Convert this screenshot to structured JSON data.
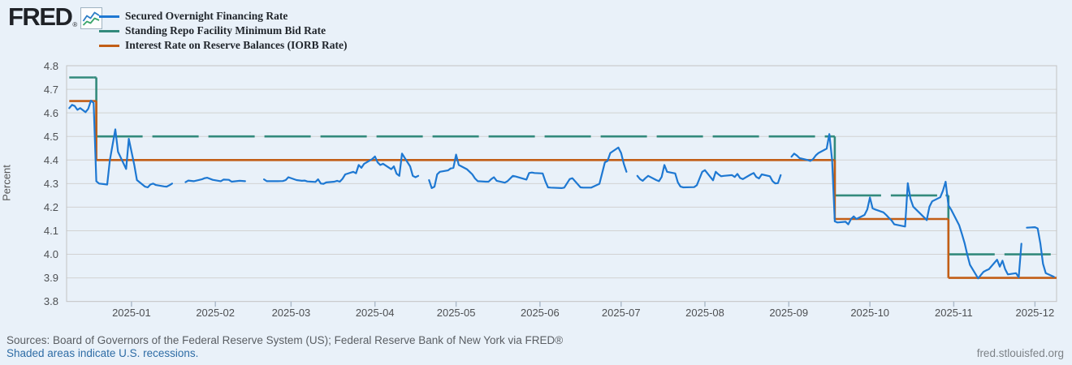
{
  "header": {
    "logo_text": "FRED",
    "logo_reg": "®",
    "legend": [
      {
        "label": "Secured Overnight Financing Rate",
        "color": "#1e78d2"
      },
      {
        "label": "Standing Repo Facility Minimum Bid Rate",
        "color": "#338a7c"
      },
      {
        "label": "Interest Rate on Reserve Balances (IORB Rate)",
        "color": "#c25e16"
      }
    ]
  },
  "footer": {
    "sources": "Sources: Board of Governors of the Federal Reserve System (US); Federal Reserve Bank of New York via FRED®",
    "recession_note": "Shaded areas indicate U.S. recessions.",
    "site_link": "fred.stlouisfed.org"
  },
  "chart_data": {
    "type": "line",
    "title": "",
    "xlabel": "",
    "ylabel": "Percent",
    "ylim": [
      3.8,
      4.8
    ],
    "yticks": [
      3.8,
      3.9,
      4.0,
      4.1,
      4.2,
      4.3,
      4.4,
      4.5,
      4.6,
      4.7,
      4.8
    ],
    "x_range": [
      "2024-12-08",
      "2025-12-09"
    ],
    "grid": "horizontal",
    "legend_position": "top-left",
    "xticks": [
      {
        "date": "2025-01-01",
        "label": "2025-01"
      },
      {
        "date": "2025-02-01",
        "label": "2025-02"
      },
      {
        "date": "2025-03-01",
        "label": "2025-03"
      },
      {
        "date": "2025-04-01",
        "label": "2025-04"
      },
      {
        "date": "2025-05-01",
        "label": "2025-05"
      },
      {
        "date": "2025-06-01",
        "label": "2025-06"
      },
      {
        "date": "2025-07-01",
        "label": "2025-07"
      },
      {
        "date": "2025-08-01",
        "label": "2025-08"
      },
      {
        "date": "2025-09-01",
        "label": "2025-09"
      },
      {
        "date": "2025-10-01",
        "label": "2025-10"
      },
      {
        "date": "2025-11-01",
        "label": "2025-11"
      },
      {
        "date": "2025-12-01",
        "label": "2025-12"
      }
    ],
    "series": [
      {
        "name": "Standing Repo Facility Minimum Bid Rate",
        "color": "#338a7c",
        "style": "dashed",
        "step": true,
        "points": [
          [
            "2024-12-09",
            4.75
          ],
          [
            "2024-12-18",
            4.75
          ],
          [
            "2024-12-19",
            4.5
          ],
          [
            "2025-09-17",
            4.5
          ],
          [
            "2025-09-18",
            4.25
          ],
          [
            "2025-10-29",
            4.25
          ],
          [
            "2025-10-30",
            4.0
          ],
          [
            "2025-12-09",
            4.0
          ]
        ]
      },
      {
        "name": "Interest Rate on Reserve Balances (IORB Rate)",
        "color": "#c25e16",
        "style": "solid",
        "step": true,
        "points": [
          [
            "2024-12-09",
            4.65
          ],
          [
            "2024-12-18",
            4.65
          ],
          [
            "2024-12-19",
            4.4
          ],
          [
            "2025-09-17",
            4.4
          ],
          [
            "2025-09-18",
            4.15
          ],
          [
            "2025-10-29",
            4.15
          ],
          [
            "2025-10-30",
            3.9
          ],
          [
            "2025-12-09",
            3.9
          ]
        ]
      },
      {
        "name": "Secured Overnight Financing Rate",
        "color": "#1e78d2",
        "style": "solid",
        "step": false,
        "points": [
          [
            "2024-12-09",
            4.62
          ],
          [
            "2024-12-10",
            4.634
          ],
          [
            "2024-12-11",
            4.629
          ],
          [
            "2024-12-12",
            4.613
          ],
          [
            "2024-12-13",
            4.62
          ],
          [
            "2024-12-15",
            4.603
          ],
          [
            "2024-12-16",
            4.617
          ],
          [
            "2024-12-17",
            4.652
          ],
          [
            "2024-12-18",
            4.642
          ],
          [
            "2024-12-19",
            4.31
          ],
          [
            "2024-12-20",
            4.3
          ],
          [
            "2024-12-23",
            4.296
          ],
          [
            "2024-12-24",
            4.4
          ],
          [
            "2024-12-26",
            4.53
          ],
          [
            "2024-12-27",
            4.435
          ],
          [
            "2024-12-30",
            4.362
          ],
          [
            "2024-12-31",
            4.49
          ],
          [
            "2025-01-02",
            4.38
          ],
          [
            "2025-01-03",
            4.315
          ],
          [
            "2025-01-06",
            4.287
          ],
          [
            "2025-01-07",
            4.284
          ],
          [
            "2025-01-08",
            4.296
          ],
          [
            "2025-01-09",
            4.3
          ],
          [
            "2025-01-10",
            4.294
          ],
          [
            "2025-01-13",
            4.288
          ],
          [
            "2025-01-14",
            4.287
          ],
          [
            "2025-01-15",
            4.293
          ],
          [
            "2025-01-16",
            4.3
          ],
          null,
          [
            "2025-01-21",
            4.306
          ],
          [
            "2025-01-22",
            4.313
          ],
          [
            "2025-01-24",
            4.31
          ],
          [
            "2025-01-27",
            4.318
          ],
          [
            "2025-01-28",
            4.323
          ],
          [
            "2025-01-29",
            4.325
          ],
          [
            "2025-01-31",
            4.316
          ],
          [
            "2025-02-03",
            4.31
          ],
          [
            "2025-02-04",
            4.317
          ],
          [
            "2025-02-06",
            4.316
          ],
          [
            "2025-02-07",
            4.308
          ],
          [
            "2025-02-10",
            4.312
          ],
          [
            "2025-02-12",
            4.31
          ],
          null,
          [
            "2025-02-19",
            4.318
          ],
          [
            "2025-02-20",
            4.31
          ],
          [
            "2025-02-24",
            4.31
          ],
          [
            "2025-02-26",
            4.311
          ],
          [
            "2025-02-27",
            4.315
          ],
          [
            "2025-02-28",
            4.327
          ],
          [
            "2025-03-03",
            4.315
          ],
          [
            "2025-03-05",
            4.312
          ],
          [
            "2025-03-06",
            4.313
          ],
          [
            "2025-03-07",
            4.309
          ],
          [
            "2025-03-10",
            4.307
          ],
          [
            "2025-03-11",
            4.318
          ],
          [
            "2025-03-12",
            4.3
          ],
          [
            "2025-03-13",
            4.299
          ],
          [
            "2025-03-14",
            4.305
          ],
          [
            "2025-03-17",
            4.308
          ],
          [
            "2025-03-18",
            4.312
          ],
          [
            "2025-03-19",
            4.308
          ],
          [
            "2025-03-20",
            4.32
          ],
          [
            "2025-03-21",
            4.339
          ],
          [
            "2025-03-24",
            4.35
          ],
          [
            "2025-03-25",
            4.344
          ],
          [
            "2025-03-26",
            4.379
          ],
          [
            "2025-03-27",
            4.367
          ],
          [
            "2025-03-28",
            4.384
          ],
          [
            "2025-03-31",
            4.404
          ],
          [
            "2025-04-01",
            4.415
          ],
          [
            "2025-04-02",
            4.39
          ],
          [
            "2025-04-03",
            4.379
          ],
          [
            "2025-04-04",
            4.384
          ],
          [
            "2025-04-07",
            4.361
          ],
          [
            "2025-04-08",
            4.373
          ],
          [
            "2025-04-09",
            4.342
          ],
          [
            "2025-04-10",
            4.333
          ],
          [
            "2025-04-11",
            4.427
          ],
          [
            "2025-04-14",
            4.373
          ],
          [
            "2025-04-15",
            4.333
          ],
          [
            "2025-04-16",
            4.327
          ],
          [
            "2025-04-17",
            4.333
          ],
          null,
          [
            "2025-04-21",
            4.315
          ],
          [
            "2025-04-22",
            4.281
          ],
          [
            "2025-04-23",
            4.287
          ],
          [
            "2025-04-24",
            4.339
          ],
          [
            "2025-04-25",
            4.35
          ],
          [
            "2025-04-28",
            4.356
          ],
          [
            "2025-04-29",
            4.364
          ],
          [
            "2025-04-30",
            4.367
          ],
          [
            "2025-05-01",
            4.423
          ],
          [
            "2025-05-02",
            4.379
          ],
          [
            "2025-05-05",
            4.361
          ],
          [
            "2025-05-06",
            4.35
          ],
          [
            "2025-05-07",
            4.339
          ],
          [
            "2025-05-08",
            4.322
          ],
          [
            "2025-05-09",
            4.31
          ],
          [
            "2025-05-12",
            4.308
          ],
          [
            "2025-05-13",
            4.308
          ],
          [
            "2025-05-14",
            4.319
          ],
          [
            "2025-05-15",
            4.327
          ],
          [
            "2025-05-16",
            4.312
          ],
          [
            "2025-05-19",
            4.304
          ],
          [
            "2025-05-20",
            4.31
          ],
          [
            "2025-05-22",
            4.333
          ],
          [
            "2025-05-23",
            4.33
          ],
          [
            "2025-05-27",
            4.317
          ],
          [
            "2025-05-28",
            4.345
          ],
          [
            "2025-05-29",
            4.347
          ],
          [
            "2025-05-30",
            4.345
          ],
          [
            "2025-06-02",
            4.343
          ],
          [
            "2025-06-03",
            4.31
          ],
          [
            "2025-06-04",
            4.284
          ],
          [
            "2025-06-05",
            4.283
          ],
          [
            "2025-06-09",
            4.281
          ],
          [
            "2025-06-10",
            4.283
          ],
          [
            "2025-06-12",
            4.319
          ],
          [
            "2025-06-13",
            4.323
          ],
          [
            "2025-06-16",
            4.284
          ],
          [
            "2025-06-17",
            4.283
          ],
          [
            "2025-06-20",
            4.283
          ],
          [
            "2025-06-23",
            4.299
          ],
          [
            "2025-06-24",
            4.345
          ],
          [
            "2025-06-25",
            4.39
          ],
          [
            "2025-06-26",
            4.396
          ],
          [
            "2025-06-27",
            4.43
          ],
          [
            "2025-06-30",
            4.453
          ],
          [
            "2025-07-01",
            4.43
          ],
          [
            "2025-07-02",
            4.384
          ],
          [
            "2025-07-03",
            4.35
          ],
          null,
          [
            "2025-07-07",
            4.333
          ],
          [
            "2025-07-08",
            4.319
          ],
          [
            "2025-07-09",
            4.312
          ],
          [
            "2025-07-10",
            4.323
          ],
          [
            "2025-07-11",
            4.333
          ],
          [
            "2025-07-14",
            4.315
          ],
          [
            "2025-07-15",
            4.31
          ],
          [
            "2025-07-16",
            4.328
          ],
          [
            "2025-07-17",
            4.379
          ],
          [
            "2025-07-18",
            4.35
          ],
          [
            "2025-07-21",
            4.343
          ],
          [
            "2025-07-22",
            4.305
          ],
          [
            "2025-07-23",
            4.287
          ],
          [
            "2025-07-24",
            4.284
          ],
          [
            "2025-07-28",
            4.285
          ],
          [
            "2025-07-29",
            4.293
          ],
          [
            "2025-07-30",
            4.322
          ],
          [
            "2025-07-31",
            4.35
          ],
          [
            "2025-08-01",
            4.357
          ],
          [
            "2025-08-04",
            4.314
          ],
          [
            "2025-08-05",
            4.35
          ],
          [
            "2025-08-06",
            4.339
          ],
          [
            "2025-08-07",
            4.331
          ],
          [
            "2025-08-08",
            4.333
          ],
          [
            "2025-08-11",
            4.336
          ],
          [
            "2025-08-12",
            4.328
          ],
          [
            "2025-08-13",
            4.341
          ],
          [
            "2025-08-14",
            4.324
          ],
          [
            "2025-08-15",
            4.319
          ],
          [
            "2025-08-18",
            4.339
          ],
          [
            "2025-08-19",
            4.345
          ],
          [
            "2025-08-20",
            4.328
          ],
          [
            "2025-08-21",
            4.322
          ],
          [
            "2025-08-22",
            4.339
          ],
          [
            "2025-08-25",
            4.331
          ],
          [
            "2025-08-26",
            4.31
          ],
          [
            "2025-08-27",
            4.301
          ],
          [
            "2025-08-28",
            4.302
          ],
          [
            "2025-08-29",
            4.336
          ],
          null,
          [
            "2025-09-02",
            4.414
          ],
          [
            "2025-09-03",
            4.427
          ],
          [
            "2025-09-04",
            4.419
          ],
          [
            "2025-09-05",
            4.408
          ],
          [
            "2025-09-08",
            4.4
          ],
          [
            "2025-09-09",
            4.396
          ],
          [
            "2025-09-10",
            4.404
          ],
          [
            "2025-09-11",
            4.42
          ],
          [
            "2025-09-12",
            4.43
          ],
          [
            "2025-09-15",
            4.448
          ],
          [
            "2025-09-16",
            4.51
          ],
          [
            "2025-09-17",
            4.4
          ],
          [
            "2025-09-18",
            4.14
          ],
          [
            "2025-09-19",
            4.135
          ],
          [
            "2025-09-22",
            4.138
          ],
          [
            "2025-09-23",
            4.127
          ],
          [
            "2025-09-24",
            4.15
          ],
          [
            "2025-09-25",
            4.161
          ],
          [
            "2025-09-26",
            4.15
          ],
          [
            "2025-09-29",
            4.167
          ],
          [
            "2025-09-30",
            4.19
          ],
          [
            "2025-10-01",
            4.241
          ],
          [
            "2025-10-02",
            4.195
          ],
          [
            "2025-10-03",
            4.19
          ],
          [
            "2025-10-06",
            4.178
          ],
          [
            "2025-10-07",
            4.167
          ],
          [
            "2025-10-08",
            4.155
          ],
          [
            "2025-10-09",
            4.144
          ],
          [
            "2025-10-10",
            4.127
          ],
          [
            "2025-10-14",
            4.118
          ],
          [
            "2025-10-15",
            4.302
          ],
          [
            "2025-10-16",
            4.236
          ],
          [
            "2025-10-17",
            4.202
          ],
          [
            "2025-10-20",
            4.168
          ],
          [
            "2025-10-21",
            4.157
          ],
          [
            "2025-10-22",
            4.145
          ],
          [
            "2025-10-23",
            4.202
          ],
          [
            "2025-10-24",
            4.225
          ],
          [
            "2025-10-27",
            4.242
          ],
          [
            "2025-10-28",
            4.27
          ],
          [
            "2025-10-29",
            4.308
          ],
          [
            "2025-10-30",
            4.208
          ],
          [
            "2025-10-31",
            4.19
          ],
          [
            "2025-11-03",
            4.123
          ],
          [
            "2025-11-04",
            4.087
          ],
          [
            "2025-11-05",
            4.047
          ],
          [
            "2025-11-06",
            3.998
          ],
          [
            "2025-11-07",
            3.955
          ],
          [
            "2025-11-10",
            3.898
          ],
          [
            "2025-11-12",
            3.926
          ],
          [
            "2025-11-13",
            3.932
          ],
          [
            "2025-11-14",
            3.937
          ],
          [
            "2025-11-17",
            3.977
          ],
          [
            "2025-11-18",
            3.948
          ],
          [
            "2025-11-19",
            3.973
          ],
          [
            "2025-11-20",
            3.937
          ],
          [
            "2025-11-21",
            3.915
          ],
          [
            "2025-11-24",
            3.92
          ],
          [
            "2025-11-25",
            3.903
          ],
          [
            "2025-11-26",
            4.045
          ],
          null,
          [
            "2025-11-28",
            4.113
          ],
          [
            "2025-12-01",
            4.115
          ],
          [
            "2025-12-02",
            4.11
          ],
          [
            "2025-12-03",
            4.047
          ],
          [
            "2025-12-04",
            3.96
          ],
          [
            "2025-12-05",
            3.92
          ],
          [
            "2025-12-08",
            3.905
          ]
        ]
      }
    ]
  }
}
